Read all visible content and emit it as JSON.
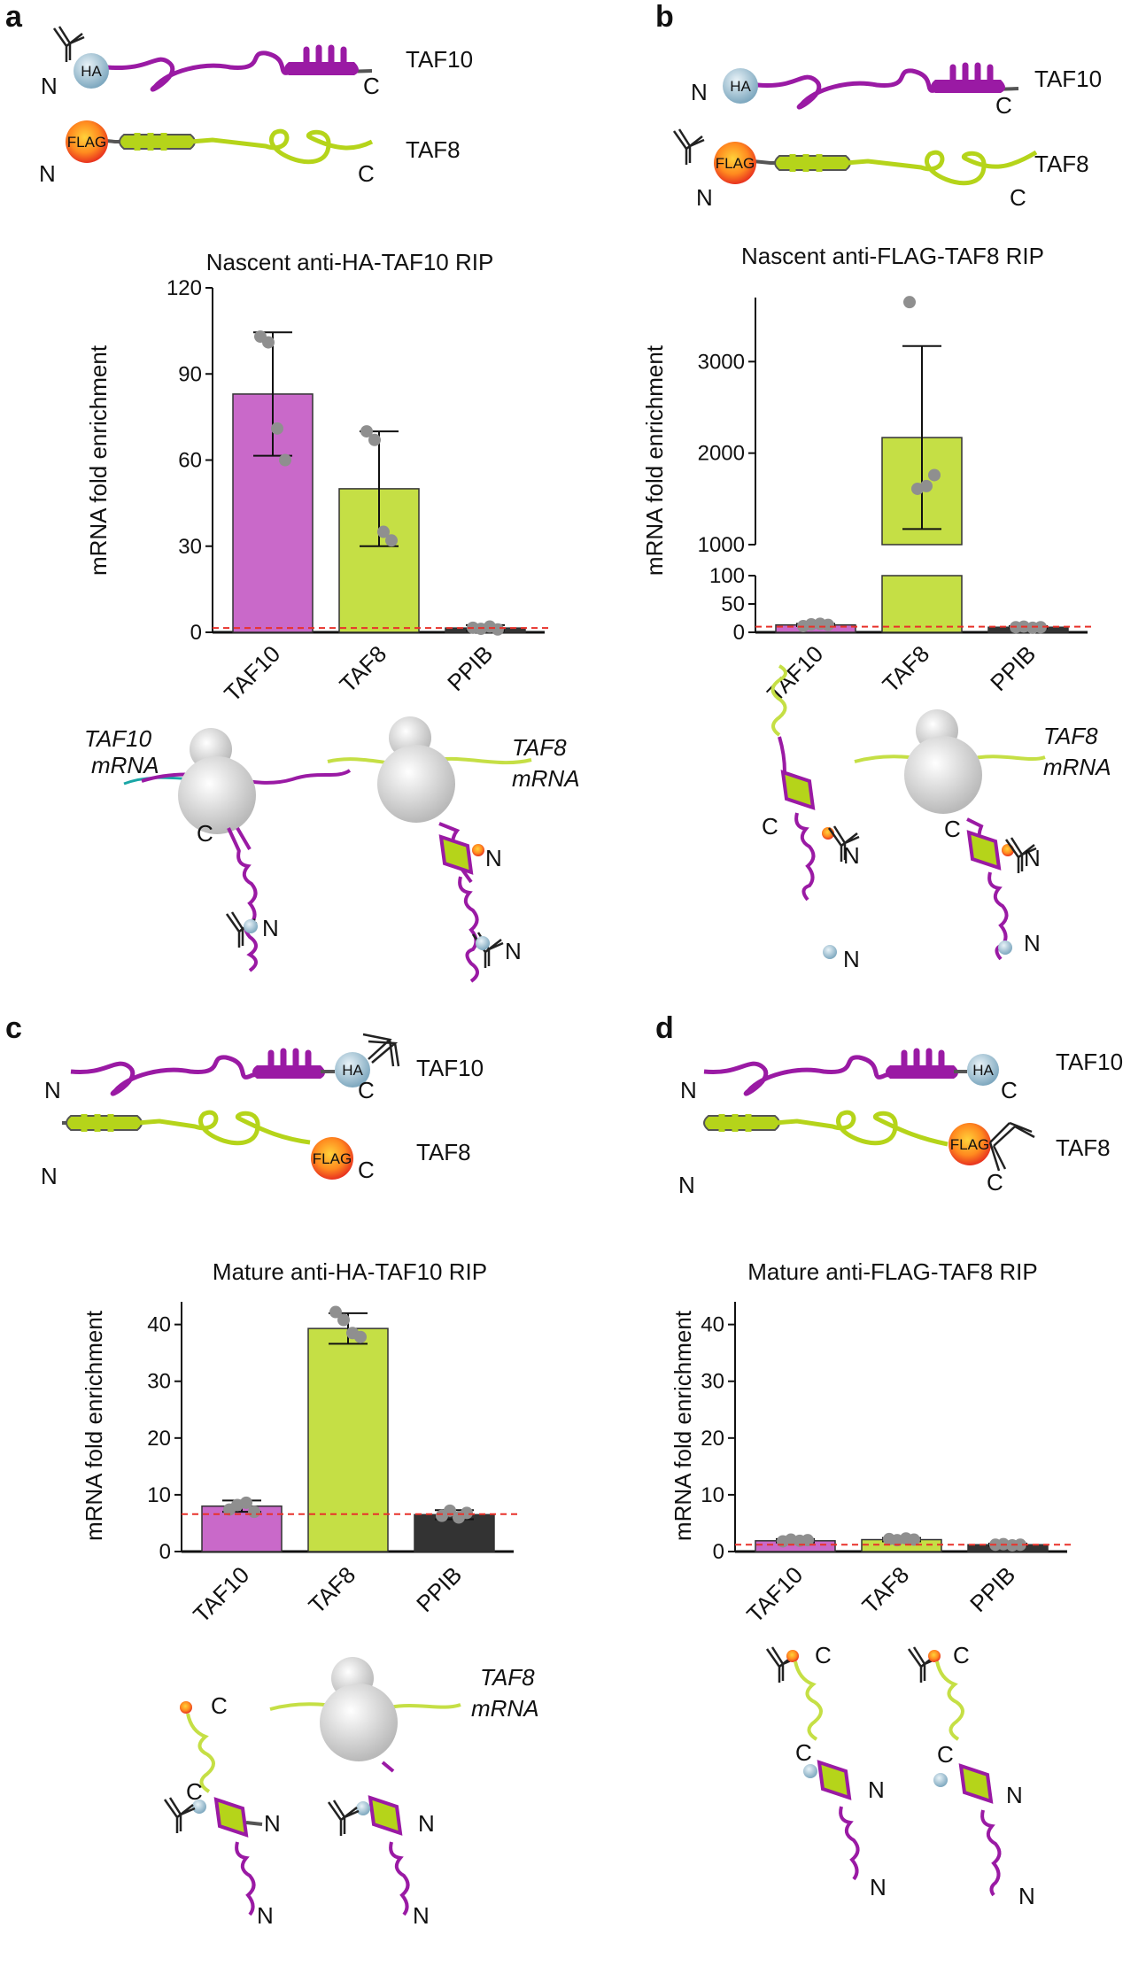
{
  "figure": {
    "panels": [
      {
        "letter": "a",
        "proteins": [
          {
            "name": "TAF10",
            "tag": "HA",
            "n": "N",
            "c": "C"
          },
          {
            "name": "TAF8",
            "tag": "FLAG",
            "n": "N",
            "c": "C"
          }
        ],
        "mrna_labels": [
          "TAF10",
          "mRNA",
          "TAF8",
          "mRNA"
        ],
        "diagram_termini": [
          "C",
          "N",
          "N"
        ]
      },
      {
        "letter": "b",
        "proteins": [
          {
            "name": "TAF10",
            "tag": "HA",
            "n": "N",
            "c": "C"
          },
          {
            "name": "TAF8",
            "tag": "FLAG",
            "n": "N",
            "c": "C"
          }
        ],
        "mrna_labels": [
          "TAF8",
          "mRNA"
        ],
        "diagram_termini": [
          "C",
          "N",
          "N",
          "C",
          "N",
          "N"
        ]
      },
      {
        "letter": "c",
        "proteins": [
          {
            "name": "TAF10",
            "tag": "HA",
            "n": "N",
            "c": "C"
          },
          {
            "name": "TAF8",
            "tag": "FLAG",
            "n": "N",
            "c": "C"
          }
        ],
        "mrna_labels": [
          "TAF8",
          "mRNA"
        ],
        "diagram_termini": [
          "C",
          "C",
          "N",
          "N",
          "N",
          "N"
        ]
      },
      {
        "letter": "d",
        "proteins": [
          {
            "name": "TAF10",
            "tag": "HA",
            "n": "N",
            "c": "C"
          },
          {
            "name": "TAF8",
            "tag": "FLAG",
            "n": "N",
            "c": "C"
          }
        ],
        "diagram_termini": [
          "C",
          "C",
          "N",
          "N",
          "C",
          "C",
          "N",
          "N"
        ]
      }
    ],
    "colors": {
      "taf10": "#c969c9",
      "taf8": "#c5df45",
      "ppib": "#333333",
      "taf10_line": "#9a1aa4",
      "taf8_line": "#b5d41a",
      "threshold": "#e8322b"
    }
  },
  "chart_data": [
    {
      "type": "bar",
      "title": "Nascent anti-HA-TAF10 RIP",
      "ylabel": "mRNA fold enrichment",
      "categories": [
        "TAF10",
        "TAF8",
        "PPIB"
      ],
      "values": [
        83,
        50,
        1.5
      ],
      "error": [
        21.5,
        20,
        1
      ],
      "points": [
        [
          103,
          101,
          71,
          60
        ],
        [
          70,
          67,
          35,
          32
        ],
        [
          1.6,
          1.2,
          2.0,
          1.0
        ]
      ],
      "ylim": [
        0,
        120
      ],
      "yticks": [
        0,
        30,
        60,
        90,
        120
      ],
      "threshold": 1.5,
      "colors": [
        "#c969c9",
        "#c5df45",
        "#333333"
      ]
    },
    {
      "type": "bar",
      "title": "Nascent anti-FLAG-TAF8 RIP",
      "ylabel": "mRNA fold enrichment",
      "categories": [
        "TAF10",
        "TAF8",
        "PPIB"
      ],
      "values": [
        13,
        2170,
        9
      ],
      "error": [
        2,
        1000,
        2
      ],
      "points": [
        [
          11,
          14,
          15,
          13
        ],
        [
          3650,
          1610,
          1640,
          1760
        ],
        [
          9,
          10,
          8,
          9
        ]
      ],
      "ylim_lower": [
        0,
        100
      ],
      "ylim_upper": [
        1000,
        3700
      ],
      "yticks_lower": [
        0,
        50,
        100
      ],
      "yticks_upper": [
        1000,
        2000,
        3000
      ],
      "axis_break": true,
      "threshold": 10,
      "colors": [
        "#c969c9",
        "#c5df45",
        "#333333"
      ]
    },
    {
      "type": "bar",
      "title": "Mature anti-HA-TAF10 RIP",
      "ylabel": "mRNA fold enrichment",
      "categories": [
        "TAF10",
        "TAF8",
        "PPIB"
      ],
      "values": [
        8,
        39.3,
        6.5
      ],
      "error": [
        1,
        2.7,
        0.8
      ],
      "points": [
        [
          7.4,
          8.2,
          8.6,
          7.0
        ],
        [
          42.2,
          40.8,
          38.5,
          37.8
        ],
        [
          6.3,
          7.2,
          6.0,
          6.8
        ]
      ],
      "ylim": [
        0,
        44
      ],
      "yticks": [
        0,
        10,
        20,
        30,
        40
      ],
      "threshold": 6.6,
      "colors": [
        "#c969c9",
        "#c5df45",
        "#333333"
      ]
    },
    {
      "type": "bar",
      "title": "Mature anti-FLAG-TAF8 RIP",
      "ylabel": "mRNA fold enrichment",
      "categories": [
        "TAF10",
        "TAF8",
        "PPIB"
      ],
      "values": [
        1.9,
        2.1,
        1.2
      ],
      "error": [
        0.3,
        0.3,
        0.2
      ],
      "points": [
        [
          1.8,
          2.1,
          1.9,
          2.0
        ],
        [
          2.2,
          2.0,
          2.3,
          2.1
        ],
        [
          1.2,
          1.3,
          1.1,
          1.2
        ]
      ],
      "ylim": [
        0,
        44
      ],
      "yticks": [
        0,
        10,
        20,
        30,
        40
      ],
      "threshold": 1.2,
      "colors": [
        "#c969c9",
        "#c5df45",
        "#333333"
      ]
    }
  ]
}
